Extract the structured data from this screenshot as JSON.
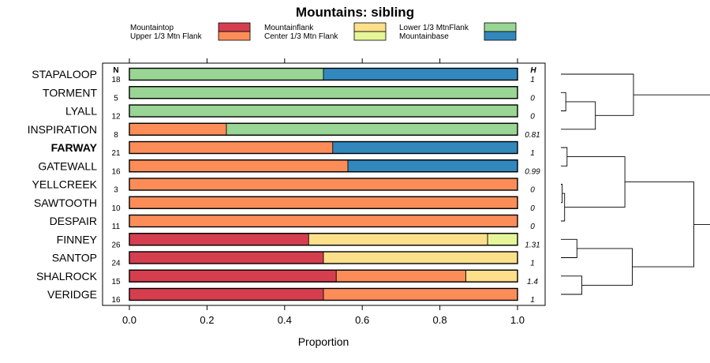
{
  "chart_data": {
    "type": "bar",
    "orientation": "horizontal",
    "stacked": "proportion",
    "title": "Mountains: sibling",
    "xlabel": "Proportion",
    "ylabel": "",
    "xlim": [
      0,
      1
    ],
    "xticks": [
      "0.0",
      "0.2",
      "0.4",
      "0.6",
      "0.8",
      "1.0"
    ],
    "column_headers": {
      "n": "N",
      "h": "H"
    },
    "legend": [
      {
        "name": "Mountaintop",
        "color": "#d53e4f"
      },
      {
        "name": "Upper 1/3 Mtn Flank",
        "color": "#fc8d59"
      },
      {
        "name": "Mountainflank",
        "color": "#fee08b"
      },
      {
        "name": "Center 1/3 Mtn Flank",
        "color": "#e6f598"
      },
      {
        "name": "Lower 1/3 MtnFlank",
        "color": "#99d594"
      },
      {
        "name": "Mountainbase",
        "color": "#3288bd"
      }
    ],
    "categories": [
      "STAPALOOP",
      "TORMENT",
      "LYALL",
      "INSPIRATION",
      "FARWAY",
      "GATEWALL",
      "YELLCREEK",
      "SAWTOOTH",
      "DESPAIR",
      "FINNEY",
      "SANTOP",
      "SHALROCK",
      "VERIDGE"
    ],
    "highlighted": "FARWAY",
    "n": [
      "18",
      "5",
      "12",
      "8",
      "21",
      "16",
      "3",
      "10",
      "11",
      "26",
      "24",
      "15",
      "16"
    ],
    "h": [
      "1",
      "0",
      "0",
      "0.81",
      "1",
      "0.99",
      "0",
      "0",
      "0",
      "1.31",
      "1",
      "1.4",
      "1"
    ],
    "series": [
      {
        "name": "Mountaintop",
        "values": [
          0,
          0,
          0,
          0,
          0,
          0,
          0,
          0,
          0,
          0.462,
          0.5,
          0.533,
          0.5
        ]
      },
      {
        "name": "Upper 1/3 Mtn Flank",
        "values": [
          0,
          0,
          0,
          0.25,
          0.524,
          0.563,
          1,
          1,
          1,
          0,
          0,
          0.334,
          0.5
        ]
      },
      {
        "name": "Mountainflank",
        "values": [
          0,
          0,
          0,
          0,
          0,
          0,
          0,
          0,
          0,
          0.461,
          0.5,
          0.133,
          0
        ]
      },
      {
        "name": "Center 1/3 Mtn Flank",
        "values": [
          0,
          0,
          0,
          0,
          0,
          0,
          0,
          0,
          0,
          0.077,
          0,
          0,
          0
        ]
      },
      {
        "name": "Lower 1/3 MtnFlank",
        "values": [
          0.5,
          1,
          1,
          0.75,
          0,
          0,
          0,
          0,
          0,
          0,
          0,
          0,
          0
        ]
      },
      {
        "name": "Mountainbase",
        "values": [
          0.5,
          0,
          0,
          0,
          0.476,
          0.437,
          0,
          0,
          0,
          0,
          0,
          0,
          0
        ]
      }
    ],
    "dendrogram": {
      "leaves": [
        "STAPALOOP",
        "TORMENT",
        "LYALL",
        "INSPIRATION",
        "FARWAY",
        "GATEWALL",
        "YELLCREEK",
        "SAWTOOTH",
        "DESPAIR",
        "FINNEY",
        "SANTOP",
        "SHALROCK",
        "VERIDGE"
      ],
      "merges": [
        {
          "a": "L1",
          "b": "L2",
          "height": 0.04
        },
        {
          "a": "L6",
          "b": "L7",
          "height": 0.01
        },
        {
          "a": "M1",
          "b": "L8",
          "height": 0.03
        },
        {
          "a": "L4",
          "b": "L5",
          "height": 0.05
        },
        {
          "a": "L9",
          "b": "L10",
          "height": 0.13
        },
        {
          "a": "L11",
          "b": "L12",
          "height": 0.17
        },
        {
          "a": "M0",
          "b": "L3",
          "height": 0.28
        },
        {
          "a": "M4",
          "b": "M5",
          "height": 0.58
        },
        {
          "a": "M3",
          "b": "M2",
          "height": 0.52
        },
        {
          "a": "M8",
          "b": "M7",
          "height": 1.08
        },
        {
          "a": "M6",
          "b": "L0",
          "height": 0.59
        },
        {
          "a": "M10",
          "b": "M9",
          "height": 1.44
        }
      ]
    }
  }
}
